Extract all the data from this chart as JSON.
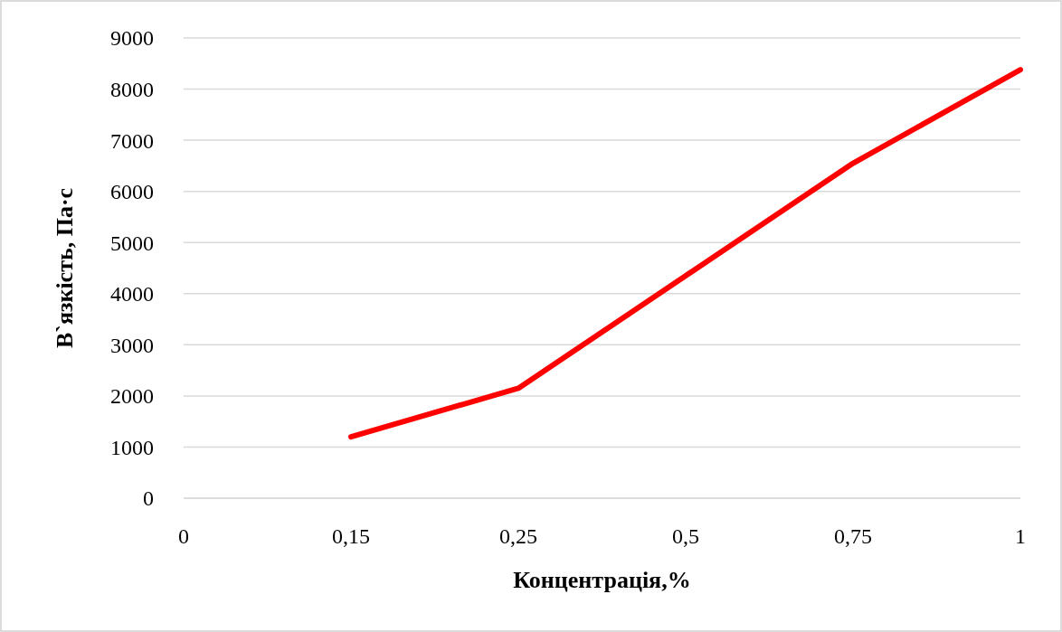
{
  "chart_data": {
    "type": "line",
    "xlabel": "Концентрація,%",
    "ylabel": "В`язкість, Па·с",
    "categories": [
      "0",
      "0,15",
      "0,25",
      "0,5",
      "0,75",
      "1"
    ],
    "series": [
      {
        "color": "#ff0000",
        "values": [
          null,
          1200,
          2150,
          4350,
          6550,
          8380
        ]
      }
    ],
    "ylim": [
      0,
      9000
    ],
    "yticks": [
      0,
      1000,
      2000,
      3000,
      4000,
      5000,
      6000,
      7000,
      8000,
      9000
    ],
    "grid": "y",
    "marker": "none",
    "line_style": "solid"
  }
}
